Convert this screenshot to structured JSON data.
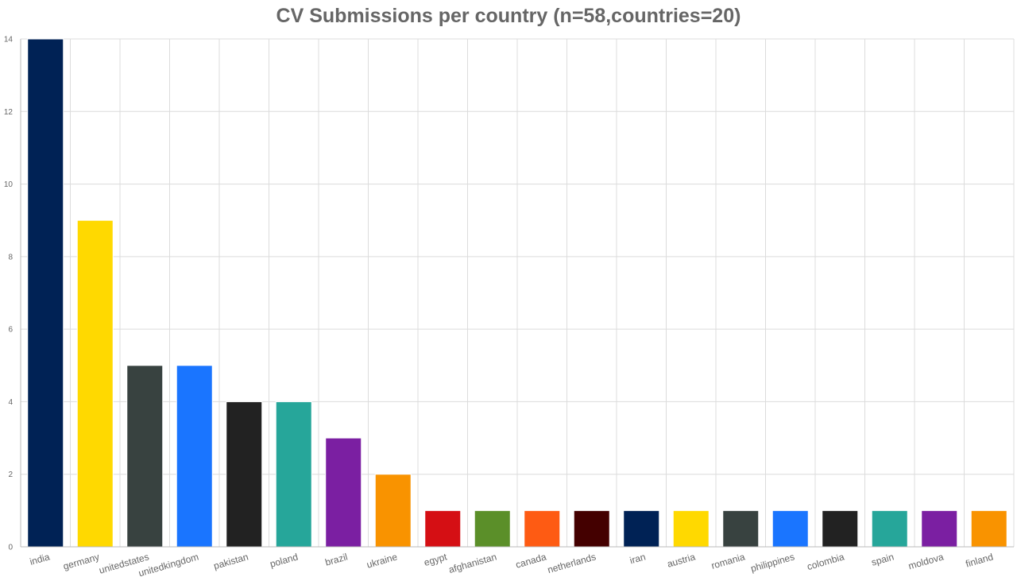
{
  "chart_data": {
    "type": "bar",
    "title": "CV Submissions per country (n=58,countries=20)",
    "xlabel": "",
    "ylabel": "",
    "ylim": [
      0,
      14
    ],
    "yticks": [
      0,
      2,
      4,
      6,
      8,
      10,
      12,
      14
    ],
    "grid": true,
    "legend": "none",
    "categories": [
      "india",
      "germany",
      "unitedstates",
      "unitedkingdom",
      "pakistan",
      "poland",
      "brazil",
      "ukraine",
      "egypt",
      "afghanistan",
      "canada",
      "netherlands",
      "iran",
      "austria",
      "romania",
      "philippines",
      "colombia",
      "spain",
      "moldova",
      "finland"
    ],
    "values": [
      14,
      9,
      5,
      5,
      4,
      4,
      3,
      2,
      1,
      1,
      1,
      1,
      1,
      1,
      1,
      1,
      1,
      1,
      1,
      1
    ],
    "colors": [
      "#002255",
      "#ffd900",
      "#384240",
      "#1a75ff",
      "#222222",
      "#26a69a",
      "#7b1fa2",
      "#f99300",
      "#d50f14",
      "#5b8f29",
      "#fe5b13",
      "#440000",
      "#002255",
      "#ffd900",
      "#384240",
      "#1a75ff",
      "#222222",
      "#26a69a",
      "#7b1fa2",
      "#f99300"
    ]
  }
}
